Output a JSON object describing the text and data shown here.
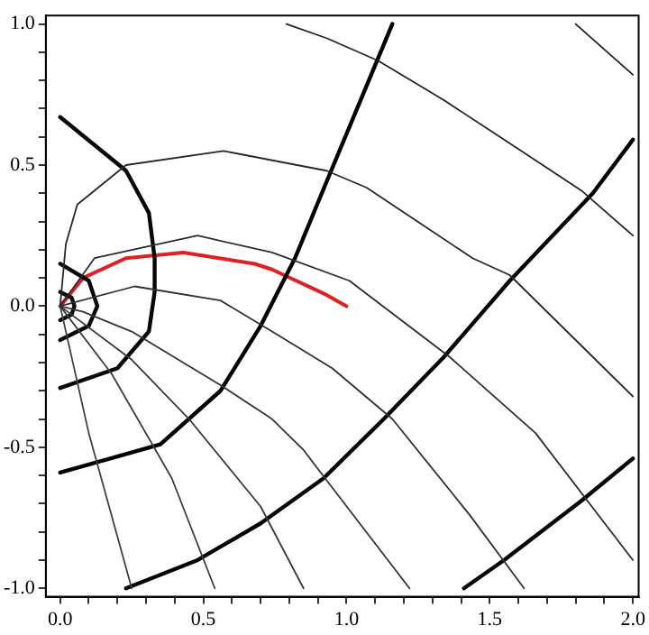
{
  "chart_data": {
    "type": "line",
    "marker": "none",
    "grid": false,
    "legend": false,
    "line_style": "solid",
    "xlim": [
      -0.05,
      2.02
    ],
    "ylim": [
      -1.03,
      1.03
    ],
    "xticks": [
      {
        "value": 0,
        "label": "0.0"
      },
      {
        "value": 0.1,
        "label": null
      },
      {
        "value": 0.2,
        "label": null
      },
      {
        "value": 0.3,
        "label": null
      },
      {
        "value": 0.4,
        "label": null
      },
      {
        "value": 0.5,
        "label": "0.5"
      },
      {
        "value": 0.6,
        "label": null
      },
      {
        "value": 0.7,
        "label": null
      },
      {
        "value": 0.8,
        "label": null
      },
      {
        "value": 0.9,
        "label": null
      },
      {
        "value": 1,
        "label": "1.0"
      },
      {
        "value": 1.1,
        "label": null
      },
      {
        "value": 1.2,
        "label": null
      },
      {
        "value": 1.3,
        "label": null
      },
      {
        "value": 1.4,
        "label": null
      },
      {
        "value": 1.5,
        "label": "1.5"
      },
      {
        "value": 1.6,
        "label": null
      },
      {
        "value": 1.7,
        "label": null
      },
      {
        "value": 1.8,
        "label": null
      },
      {
        "value": 1.9,
        "label": null
      },
      {
        "value": 2,
        "label": "2.0"
      }
    ],
    "yticks": [
      {
        "value": -1,
        "label": "-1.0"
      },
      {
        "value": -0.9,
        "label": null
      },
      {
        "value": -0.8,
        "label": null
      },
      {
        "value": -0.7,
        "label": null
      },
      {
        "value": -0.6,
        "label": null
      },
      {
        "value": -0.5,
        "label": "-0.5"
      },
      {
        "value": -0.4,
        "label": null
      },
      {
        "value": -0.3,
        "label": null
      },
      {
        "value": -0.2,
        "label": null
      },
      {
        "value": -0.1,
        "label": null
      },
      {
        "value": 0,
        "label": "0.0"
      },
      {
        "value": 0.1,
        "label": null
      },
      {
        "value": 0.2,
        "label": null
      },
      {
        "value": 0.3,
        "label": null
      },
      {
        "value": 0.4,
        "label": null
      },
      {
        "value": 0.5,
        "label": "0.5"
      },
      {
        "value": 0.6,
        "label": null
      },
      {
        "value": 0.7,
        "label": null
      },
      {
        "value": 0.8,
        "label": null
      },
      {
        "value": 0.9,
        "label": null
      },
      {
        "value": 1,
        "label": "1.0"
      }
    ],
    "series": [
      {
        "color": "#202020",
        "x": [
          1.8,
          2.0
        ],
        "values": [
          1.0,
          0.82
        ]
      },
      {
        "color": "#242424",
        "x": [
          0.79,
          0.93,
          1.11,
          1.34,
          1.55,
          1.82,
          2.0
        ],
        "values": [
          1.0,
          0.95,
          0.87,
          0.73,
          0.59,
          0.41,
          0.25
        ]
      },
      {
        "color": "#282828",
        "x": [
          0,
          0.02,
          0.06,
          0.23,
          0.57,
          0.93,
          1.07,
          1.44,
          1.57,
          2.0
        ],
        "values": [
          0,
          0.22,
          0.36,
          0.5,
          0.55,
          0.48,
          0.42,
          0.17,
          0.11,
          -0.32
        ]
      },
      {
        "color": "#2c2c2c",
        "x": [
          0,
          0.12,
          0.48,
          0.74,
          1.01,
          1.36,
          1.66,
          2.0
        ],
        "values": [
          0,
          0.17,
          0.25,
          0.19,
          0.09,
          -0.18,
          -0.45,
          -0.9
        ]
      },
      {
        "color": "#303030",
        "x": [
          0,
          0.26,
          0.56,
          0.74,
          0.95,
          1.16,
          1.43,
          1.62
        ],
        "values": [
          0,
          0.07,
          0.02,
          -0.09,
          -0.22,
          -0.4,
          -0.74,
          -1.0
        ]
      },
      {
        "color": "#343434",
        "x": [
          0,
          0.08,
          0.25,
          0.56,
          0.74,
          0.85,
          0.91,
          1.22
        ],
        "values": [
          0,
          -0.02,
          -0.09,
          -0.28,
          -0.4,
          -0.51,
          -0.59,
          -1.0
        ]
      },
      {
        "color": "#383838",
        "x": [
          0,
          0.25,
          0.45,
          0.7,
          0.85
        ],
        "values": [
          0,
          -0.19,
          -0.4,
          -0.71,
          -1.0
        ]
      },
      {
        "color": "#3c3c3c",
        "x": [
          0,
          0.18,
          0.39,
          0.54
        ],
        "values": [
          0,
          -0.24,
          -0.61,
          -1.0
        ]
      },
      {
        "color": "#404040",
        "x": [
          0,
          0.1,
          0.25
        ],
        "values": [
          0,
          -0.45,
          -1.0
        ]
      },
      {
        "color": "#000000",
        "x": [
          1.16,
          0.93,
          0.82,
          0.7,
          0.56,
          0.35,
          0
        ],
        "values": [
          1.0,
          0.44,
          0.17,
          -0.07,
          -0.3,
          -0.49,
          -0.59
        ]
      },
      {
        "color": "#020202",
        "x": [
          2.0,
          1.86,
          1.57,
          1.34,
          1.13,
          0.92,
          0.7,
          0.48,
          0.23
        ],
        "values": [
          0.59,
          0.4,
          0.09,
          -0.18,
          -0.4,
          -0.61,
          -0.77,
          -0.9,
          -1.0
        ]
      },
      {
        "color": "#040404",
        "x": [
          2.0,
          1.82,
          1.55,
          1.41
        ],
        "values": [
          -0.54,
          -0.69,
          -0.9,
          -1.0
        ]
      },
      {
        "color": "#060606",
        "x": [
          0,
          0.23,
          0.31,
          0.33,
          0.33,
          0.31,
          0.2,
          0
        ],
        "values": [
          0.67,
          0.48,
          0.33,
          0.17,
          0.05,
          -0.09,
          -0.22,
          -0.29
        ]
      },
      {
        "color": "#080808",
        "x": [
          0,
          0.1,
          0.13,
          0.1,
          0
        ],
        "values": [
          0.15,
          0.09,
          0,
          -0.07,
          -0.12
        ]
      },
      {
        "color": "#0a0a0a",
        "x": [
          0,
          0.04,
          0.05,
          0.04,
          0
        ],
        "values": [
          0.05,
          0.03,
          0,
          -0.03,
          -0.05
        ]
      },
      {
        "color": "#e02020",
        "x": [
          0,
          0.08,
          0.23,
          0.43,
          0.68,
          0.74,
          0.93,
          1.0
        ],
        "values": [
          0,
          0.1,
          0.17,
          0.19,
          0.15,
          0.13,
          0.04,
          0
        ]
      }
    ]
  }
}
